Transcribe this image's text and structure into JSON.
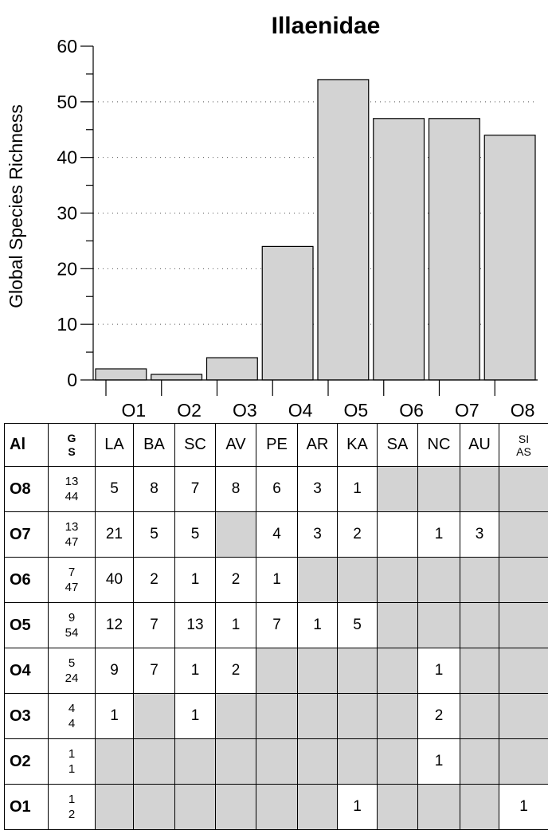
{
  "chart_data": {
    "type": "bar",
    "title": "Illaenidae",
    "xlabel": "",
    "ylabel": "Global Species Richness",
    "categories": [
      "O1",
      "O2",
      "O3",
      "O4",
      "O5",
      "O6",
      "O7",
      "O8"
    ],
    "values": [
      2,
      1,
      4,
      24,
      54,
      47,
      47,
      44
    ],
    "ylim": [
      0,
      60
    ],
    "yticks": [
      0,
      10,
      20,
      30,
      40,
      50,
      60
    ],
    "grid": "dotted horizontal at 10, 20, 30, 40, 50",
    "colors": {
      "bar_fill": "#d3d3d3",
      "bar_stroke": "#000000",
      "empty_cell": "#d3d3d3"
    }
  },
  "table": {
    "corner_label": "Al",
    "gs_header": [
      "G",
      "S"
    ],
    "columns": [
      "LA",
      "BA",
      "SC",
      "AV",
      "PE",
      "AR",
      "KA",
      "SA",
      "NC",
      "AU",
      "SI AS"
    ],
    "rows": [
      {
        "label": "O8",
        "gs": [
          "13",
          "44"
        ],
        "cells": [
          "5",
          "8",
          "7",
          "8",
          "6",
          "3",
          "1",
          null,
          null,
          null,
          null
        ],
        "blank": []
      },
      {
        "label": "O7",
        "gs": [
          "13",
          "47"
        ],
        "cells": [
          "21",
          "5",
          "5",
          null,
          "4",
          "3",
          "2",
          "",
          "1",
          "3",
          null
        ],
        "blank": [
          7
        ]
      },
      {
        "label": "O6",
        "gs": [
          "7",
          "47"
        ],
        "cells": [
          "40",
          "2",
          "1",
          "2",
          "1",
          null,
          null,
          null,
          null,
          null,
          null
        ],
        "blank": []
      },
      {
        "label": "O5",
        "gs": [
          "9",
          "54"
        ],
        "cells": [
          "12",
          "7",
          "13",
          "1",
          "7",
          "1",
          "5",
          null,
          null,
          null,
          null
        ],
        "blank": []
      },
      {
        "label": "O4",
        "gs": [
          "5",
          "24"
        ],
        "cells": [
          "9",
          "7",
          "1",
          "2",
          null,
          null,
          null,
          null,
          "1",
          null,
          null
        ],
        "blank": []
      },
      {
        "label": "O3",
        "gs": [
          "4",
          "4"
        ],
        "cells": [
          "1",
          null,
          "1",
          null,
          null,
          null,
          null,
          null,
          "2",
          null,
          null
        ],
        "blank": []
      },
      {
        "label": "O2",
        "gs": [
          "1",
          "1"
        ],
        "cells": [
          null,
          null,
          null,
          null,
          null,
          null,
          null,
          null,
          "1",
          null,
          null
        ],
        "blank": []
      },
      {
        "label": "O1",
        "gs": [
          "1",
          "2"
        ],
        "cells": [
          null,
          null,
          null,
          null,
          null,
          null,
          "1",
          null,
          null,
          null,
          "1"
        ],
        "blank": []
      }
    ]
  }
}
